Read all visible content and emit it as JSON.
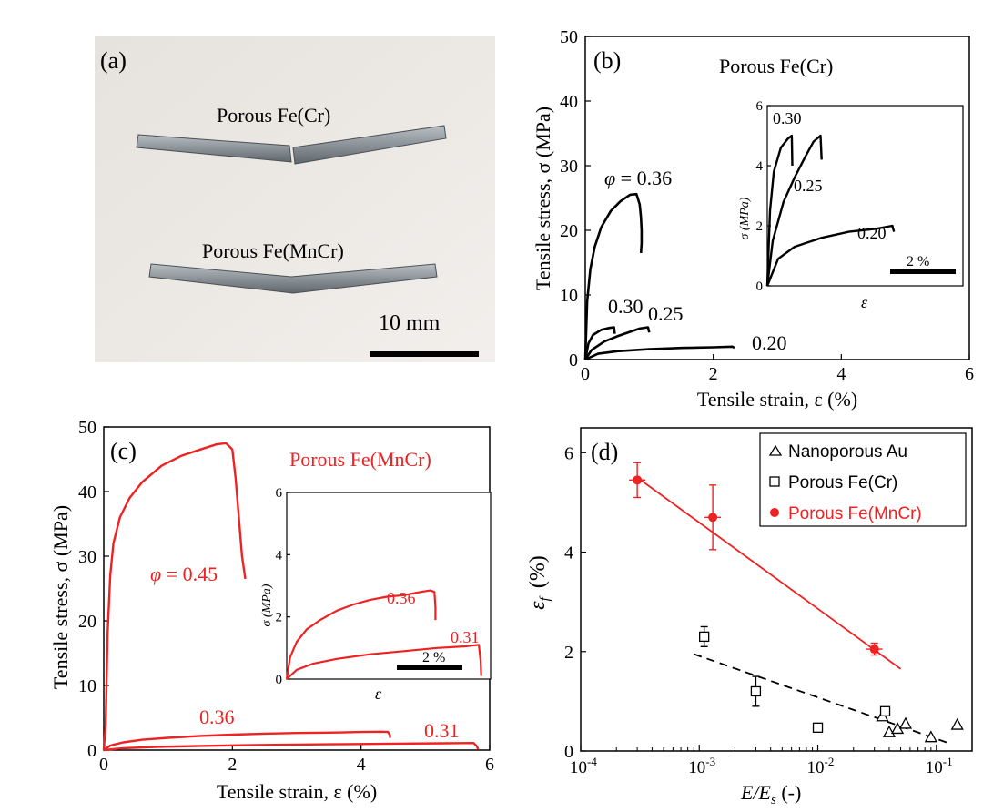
{
  "colors": {
    "black": "#000000",
    "red": "#ee2222",
    "photo_bg": "#ece9e5",
    "steel": "#8d9499"
  },
  "panel_a": {
    "label": "(a)",
    "sample_top": "Porous Fe(Cr)",
    "sample_bottom": "Porous Fe(MnCr)",
    "scale_bar": "10 mm"
  },
  "chart_data": [
    {
      "panel": "(b)",
      "type": "line",
      "title": "Porous Fe(Cr)",
      "xlabel": "Tensile strain, ε (%)",
      "ylabel": "Tensile stress, σ (MPa)",
      "xlim": [
        0,
        6
      ],
      "ylim": [
        0,
        50
      ],
      "xticks": [
        "0",
        "2",
        "4",
        "6"
      ],
      "yticks": [
        "0",
        "10",
        "20",
        "30",
        "40",
        "50"
      ],
      "series": [
        {
          "label": "φ = 0.36",
          "x": [
            0,
            0.03,
            0.08,
            0.15,
            0.25,
            0.4,
            0.55,
            0.7,
            0.8,
            0.85,
            0.87,
            0.88,
            0.88,
            0.87
          ],
          "y": [
            0,
            9,
            14,
            17.5,
            20.5,
            23,
            24.5,
            25.5,
            25.6,
            24,
            22,
            20,
            18,
            16.5
          ]
        },
        {
          "label": "0.30",
          "x": [
            0,
            0.05,
            0.12,
            0.25,
            0.38,
            0.45,
            0.46
          ],
          "y": [
            0,
            2.5,
            3.8,
            4.6,
            4.9,
            5.0,
            4.0
          ]
        },
        {
          "label": "0.25",
          "x": [
            0,
            0.1,
            0.3,
            0.5,
            0.7,
            0.85,
            0.98,
            1.0
          ],
          "y": [
            0,
            1.5,
            2.8,
            3.6,
            4.3,
            4.8,
            5.0,
            4.2
          ]
        },
        {
          "label": "0.20",
          "x": [
            0,
            0.2,
            0.5,
            1.0,
            1.5,
            2.0,
            2.3,
            2.33
          ],
          "y": [
            0,
            0.9,
            1.3,
            1.6,
            1.8,
            1.9,
            2.0,
            1.8
          ]
        }
      ],
      "inset": {
        "xlabel": "ε",
        "ylabel": "σ (MPa)",
        "ylim": [
          0,
          6
        ],
        "yticks": [
          "0",
          "2",
          "4",
          "6"
        ],
        "scale_bar": "2 %",
        "series": [
          {
            "label": "0.30",
            "x": [
              0,
              0.05,
              0.12,
              0.25,
              0.38,
              0.45,
              0.46
            ],
            "y": [
              0,
              2.5,
              3.8,
              4.6,
              4.9,
              5.0,
              4.0
            ]
          },
          {
            "label": "0.25",
            "x": [
              0,
              0.1,
              0.3,
              0.5,
              0.7,
              0.85,
              0.98,
              1.0
            ],
            "y": [
              0,
              1.5,
              2.8,
              3.6,
              4.3,
              4.8,
              5.0,
              4.2
            ]
          },
          {
            "label": "0.20",
            "x": [
              0,
              0.2,
              0.5,
              1.0,
              1.5,
              2.0,
              2.3,
              2.33
            ],
            "y": [
              0,
              0.9,
              1.3,
              1.6,
              1.8,
              1.9,
              2.0,
              1.8
            ]
          }
        ]
      }
    },
    {
      "panel": "(c)",
      "type": "line",
      "title": "Porous Fe(MnCr)",
      "xlabel": "Tensile strain, ε (%)",
      "ylabel": "Tensile stress, σ (MPa)",
      "xlim": [
        0,
        6
      ],
      "ylim": [
        0,
        50
      ],
      "xticks": [
        "0",
        "2",
        "4",
        "6"
      ],
      "yticks": [
        "0",
        "10",
        "20",
        "30",
        "40",
        "50"
      ],
      "series": [
        {
          "label": "φ = 0.45",
          "x": [
            0,
            0.03,
            0.06,
            0.1,
            0.15,
            0.25,
            0.4,
            0.6,
            0.9,
            1.2,
            1.5,
            1.75,
            1.9,
            2.0,
            2.05,
            2.1,
            2.15,
            2.2
          ],
          "y": [
            0,
            4,
            18,
            27,
            32,
            36,
            39,
            41.5,
            44,
            45.5,
            46.5,
            47.3,
            47.5,
            46.5,
            42,
            36,
            30,
            26.5
          ]
        },
        {
          "label": "0.36",
          "x": [
            0,
            0.1,
            0.3,
            0.6,
            1.0,
            1.5,
            2.0,
            2.5,
            3.0,
            3.5,
            4.0,
            4.3,
            4.42,
            4.45,
            4.45
          ],
          "y": [
            0,
            0.7,
            1.2,
            1.6,
            1.9,
            2.2,
            2.4,
            2.55,
            2.65,
            2.7,
            2.8,
            2.85,
            2.8,
            2.3,
            1.9
          ]
        },
        {
          "label": "0.31",
          "x": [
            0,
            0.3,
            0.8,
            1.5,
            2.5,
            3.5,
            4.5,
            5.3,
            5.75,
            5.8,
            5.82
          ],
          "y": [
            0,
            0.3,
            0.5,
            0.65,
            0.8,
            0.9,
            1.0,
            1.05,
            1.1,
            0.6,
            0.1
          ]
        }
      ],
      "inset": {
        "xlabel": "ε",
        "ylabel": "σ (MPa)",
        "ylim": [
          0,
          6
        ],
        "yticks": [
          "0",
          "2",
          "4",
          "6"
        ],
        "scale_bar": "2 %",
        "series": [
          {
            "label": "0.36",
            "x": [
              0,
              0.1,
              0.3,
              0.6,
              1.0,
              1.5,
              2.0,
              2.5,
              3.0,
              3.5,
              4.0,
              4.3,
              4.42,
              4.45,
              4.45
            ],
            "y": [
              0,
              0.7,
              1.2,
              1.6,
              1.9,
              2.2,
              2.4,
              2.55,
              2.65,
              2.7,
              2.8,
              2.85,
              2.8,
              2.3,
              1.9
            ]
          },
          {
            "label": "0.31",
            "x": [
              0,
              0.3,
              0.8,
              1.5,
              2.5,
              3.5,
              4.5,
              5.3,
              5.75,
              5.8,
              5.82
            ],
            "y": [
              0,
              0.3,
              0.5,
              0.65,
              0.8,
              0.9,
              1.0,
              1.05,
              1.1,
              0.6,
              0.1
            ]
          }
        ]
      }
    },
    {
      "panel": "(d)",
      "type": "scatter",
      "xlabel": "E/E",
      "xlabel_sub": "s",
      "xlabel_suffix": " (-)",
      "ylabel": "ε",
      "ylabel_sub": "f",
      "ylabel_suffix": "(%)",
      "xscale": "log",
      "xlim": [
        0.0001,
        0.2
      ],
      "ylim": [
        0,
        6.5
      ],
      "xticks": [
        {
          "base": "10",
          "exp": "-4"
        },
        {
          "base": "10",
          "exp": "-3"
        },
        {
          "base": "10",
          "exp": "-2"
        },
        {
          "base": "10",
          "exp": "-1"
        }
      ],
      "yticks": [
        "0",
        "2",
        "4",
        "6"
      ],
      "legend_position": "top-right",
      "series": [
        {
          "name": "Nanoporous Au",
          "marker": "triangle-open",
          "color": "#000000",
          "points": [
            {
              "x": 0.035,
              "y": 0.7
            },
            {
              "x": 0.04,
              "y": 0.38
            },
            {
              "x": 0.047,
              "y": 0.45
            },
            {
              "x": 0.055,
              "y": 0.55
            },
            {
              "x": 0.09,
              "y": 0.28
            },
            {
              "x": 0.15,
              "y": 0.53
            }
          ]
        },
        {
          "name": "Porous Fe(Cr)",
          "marker": "square-open",
          "color": "#000000",
          "points": [
            {
              "x": 0.0011,
              "y": 2.3,
              "yerr": 0.2
            },
            {
              "x": 0.003,
              "y": 1.2,
              "yerr": 0.3
            },
            {
              "x": 0.01,
              "y": 0.47,
              "yerr": 0.05
            },
            {
              "x": 0.037,
              "y": 0.8,
              "yerr": 0.05
            }
          ]
        },
        {
          "name": "Porous Fe(MnCr)",
          "marker": "circle-filled",
          "color": "#ee2222",
          "points": [
            {
              "x": 0.0003,
              "y": 5.45,
              "yerr": 0.35
            },
            {
              "x": 0.0013,
              "y": 4.7,
              "yerr": 0.65
            },
            {
              "x": 0.03,
              "y": 2.05,
              "yerr": 0.12
            }
          ]
        }
      ],
      "fits": [
        {
          "style": "solid",
          "color": "#ee2222",
          "x": [
            0.0003,
            0.05
          ],
          "y": [
            5.5,
            1.65
          ]
        },
        {
          "style": "dashed",
          "color": "#000000",
          "x": [
            0.0009,
            0.13
          ],
          "y": [
            1.95,
            0.15
          ]
        }
      ]
    }
  ]
}
